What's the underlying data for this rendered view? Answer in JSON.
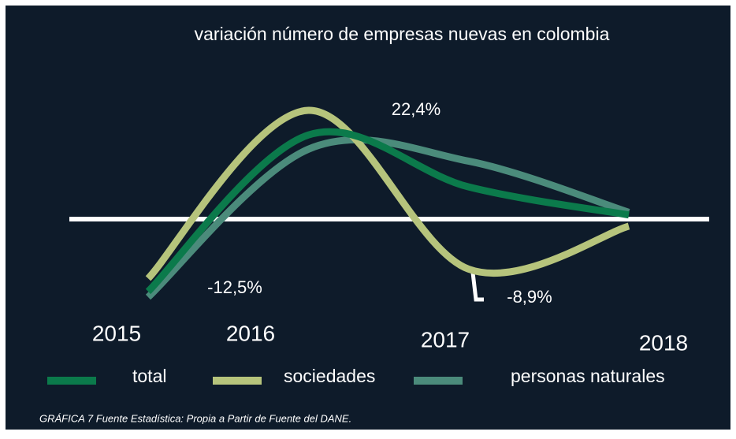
{
  "chart_data": {
    "type": "line",
    "title": "variación número de empresas nuevas en colombia",
    "categories": [
      "2015",
      "2016",
      "2017",
      "2018"
    ],
    "series": [
      {
        "name": "total",
        "color": "#0b7a4b",
        "values": [
          -19.5,
          22.4,
          8.5,
          1
        ]
      },
      {
        "name": "sociedades",
        "color": "#b6c47c",
        "values": [
          -16,
          29,
          -13.5,
          -2
        ]
      },
      {
        "name": "personas naturales",
        "color": "#4b8b7b",
        "values": [
          -21,
          18.6,
          15.4,
          1.7
        ]
      }
    ],
    "annotations": [
      "22,4%",
      "-12,5%",
      "-8,9%"
    ],
    "source": "GRÁFICA 7 Fuente Estadística: Propia a Partir de Fuente del DANE."
  }
}
